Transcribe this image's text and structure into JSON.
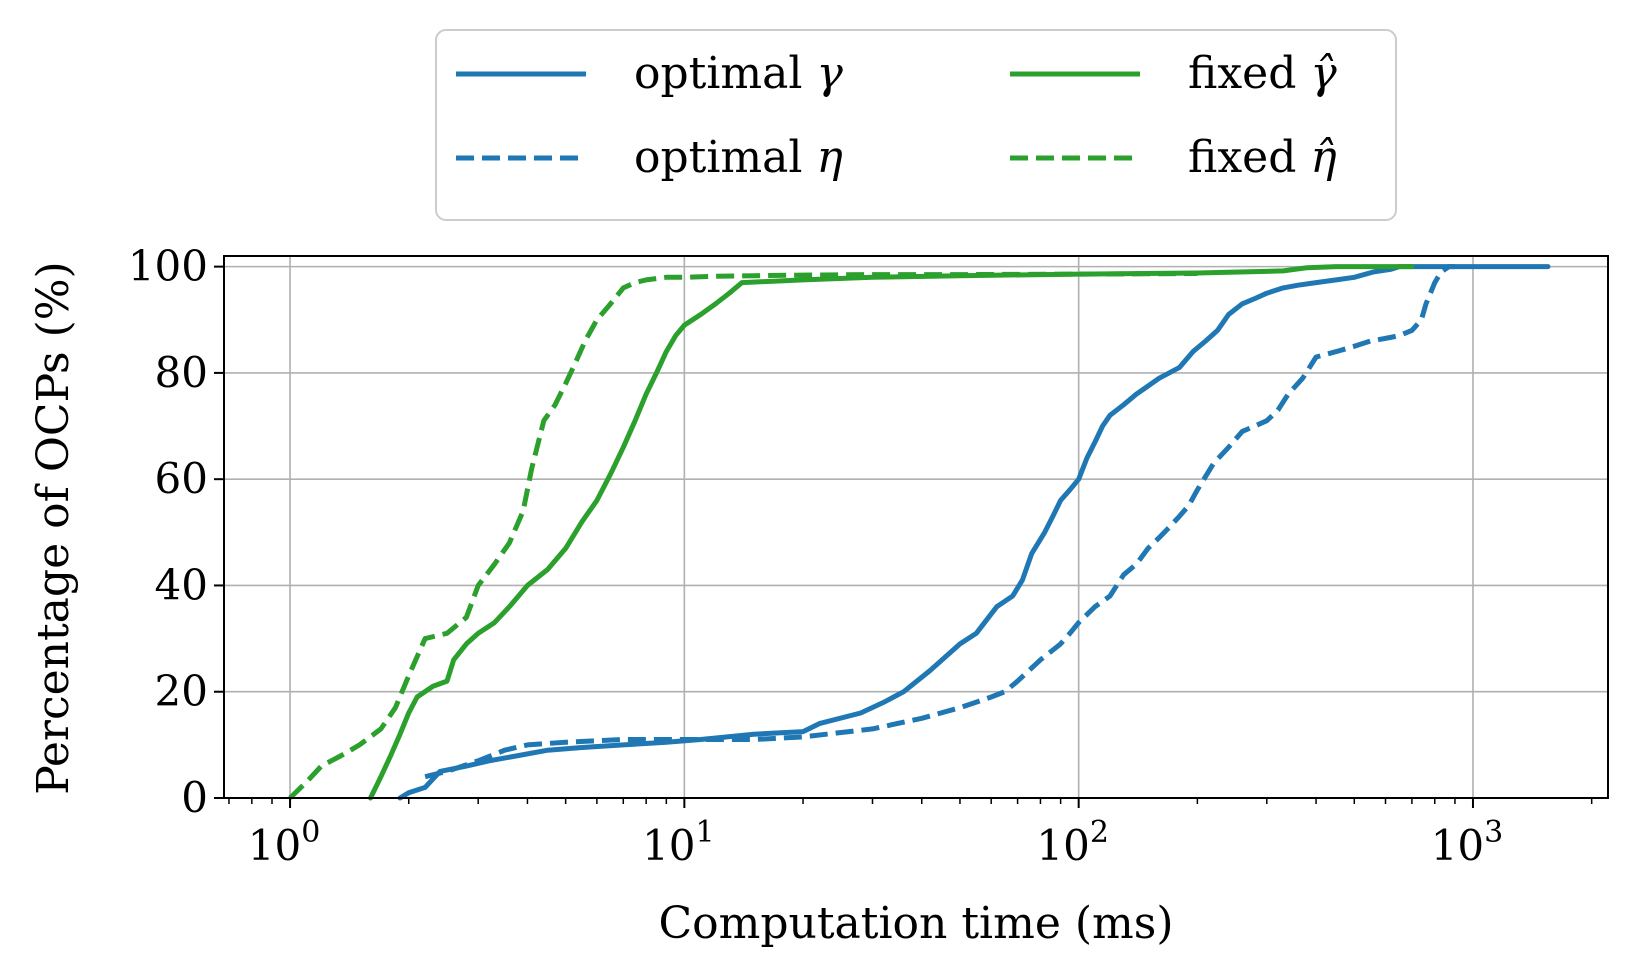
{
  "chart_data": {
    "type": "line",
    "title": "",
    "xlabel": "Computation time (ms)",
    "ylabel": "Percentage of OCPs (%)",
    "xscale": "log",
    "xlim": [
      0.68,
      2200
    ],
    "ylim": [
      0,
      102
    ],
    "grid": true,
    "legend_position": "top-center",
    "x_tick_values": [
      1,
      10,
      100,
      1000
    ],
    "x_tick_labels": [
      {
        "base": "10",
        "exp": "0"
      },
      {
        "base": "10",
        "exp": "1"
      },
      {
        "base": "10",
        "exp": "2"
      },
      {
        "base": "10",
        "exp": "3"
      }
    ],
    "y_ticks": [
      0,
      20,
      40,
      60,
      80,
      100
    ],
    "series": [
      {
        "name": "optimal γ",
        "legend_text": "optimal",
        "legend_symbol": "γ",
        "color": "#1f77b4",
        "dash": "solid",
        "x": [
          1.9,
          2.0,
          2.2,
          2.4,
          2.8,
          3.2,
          3.8,
          4.5,
          5.5,
          7,
          9,
          11,
          15,
          20,
          22,
          28,
          32,
          36,
          42,
          50,
          55,
          62,
          68,
          72,
          76,
          82,
          86,
          90,
          95,
          100,
          105,
          110,
          115,
          120,
          130,
          140,
          160,
          180,
          195,
          210,
          225,
          240,
          260,
          280,
          300,
          330,
          360,
          400,
          450,
          500,
          560,
          620,
          650,
          700,
          900,
          1550
        ],
        "y": [
          0,
          1,
          2,
          5,
          6,
          7,
          8,
          9,
          9.5,
          10,
          10.5,
          11,
          12,
          12.5,
          14,
          16,
          18,
          20,
          24,
          29,
          31,
          36,
          38,
          41,
          46,
          50,
          53,
          56,
          58,
          60,
          64,
          67,
          70,
          72,
          74,
          76,
          79,
          81,
          84,
          86,
          88,
          91,
          93,
          94,
          95,
          96,
          96.5,
          97,
          97.5,
          98,
          99,
          99.5,
          100,
          100,
          100,
          100
        ]
      },
      {
        "name": "optimal η",
        "legend_text": "optimal",
        "legend_symbol": "η",
        "color": "#1f77b4",
        "dash": "dashed",
        "x": [
          2.2,
          2.5,
          3.0,
          3.5,
          4.0,
          5.0,
          7,
          10,
          15,
          20,
          30,
          40,
          50,
          60,
          65,
          70,
          80,
          90,
          95,
          100,
          110,
          120,
          130,
          140,
          150,
          160,
          170,
          180,
          190,
          200,
          220,
          240,
          260,
          280,
          300,
          320,
          340,
          370,
          400,
          450,
          500,
          550,
          600,
          650,
          700,
          740,
          760,
          780,
          800,
          830,
          870,
          900
        ],
        "y": [
          4,
          5,
          7,
          9,
          10,
          10.5,
          11,
          11,
          11,
          11.5,
          13,
          15,
          17,
          19,
          20,
          22,
          26,
          29,
          31,
          33,
          36,
          38,
          42,
          44,
          47,
          49,
          51,
          53,
          55,
          58,
          63,
          66,
          69,
          70,
          71,
          73,
          76,
          79,
          83,
          84,
          85,
          86,
          86.5,
          87,
          88,
          90,
          93,
          95,
          97,
          99,
          100,
          100
        ]
      },
      {
        "name": "fixed γ̂",
        "legend_text": "fixed",
        "legend_symbol": "γ̂",
        "color": "#2ca02c",
        "dash": "solid",
        "x": [
          1.6,
          1.7,
          1.8,
          1.9,
          2.0,
          2.1,
          2.3,
          2.5,
          2.6,
          2.8,
          3.0,
          3.3,
          3.6,
          4.0,
          4.5,
          5.0,
          5.5,
          6.0,
          6.5,
          7.0,
          7.5,
          8.0,
          8.5,
          9.0,
          9.5,
          10,
          11,
          12,
          13,
          14,
          20,
          30,
          50,
          100,
          200,
          330,
          380,
          450,
          600,
          700
        ],
        "y": [
          0,
          4,
          8,
          12,
          16,
          19,
          21,
          22,
          26,
          29,
          31,
          33,
          36,
          40,
          43,
          47,
          52,
          56,
          61,
          66,
          71,
          76,
          80,
          84,
          87,
          89,
          91,
          93,
          95,
          97,
          97.5,
          98,
          98.3,
          98.6,
          98.8,
          99.2,
          99.8,
          100,
          100,
          100
        ]
      },
      {
        "name": "fixed η̂",
        "legend_text": "fixed",
        "legend_symbol": "η̂",
        "color": "#2ca02c",
        "dash": "dashed",
        "x": [
          1.0,
          1.1,
          1.2,
          1.35,
          1.5,
          1.7,
          1.85,
          2.0,
          2.2,
          2.5,
          2.8,
          3.0,
          3.3,
          3.6,
          3.9,
          4.1,
          4.4,
          4.7,
          5.0,
          5.3,
          5.6,
          6.0,
          6.5,
          7.0,
          7.5,
          8.0,
          9.0,
          10,
          12,
          15,
          20,
          30,
          50,
          100,
          200
        ],
        "y": [
          0,
          3,
          6,
          8,
          10,
          13,
          17,
          23,
          30,
          31,
          34,
          40,
          44,
          48,
          54,
          62,
          71,
          74,
          78,
          82,
          86,
          90,
          93,
          96,
          97,
          97.5,
          98,
          98,
          98.2,
          98.3,
          98.4,
          98.5,
          98.5,
          98.6,
          98.7
        ]
      }
    ]
  }
}
